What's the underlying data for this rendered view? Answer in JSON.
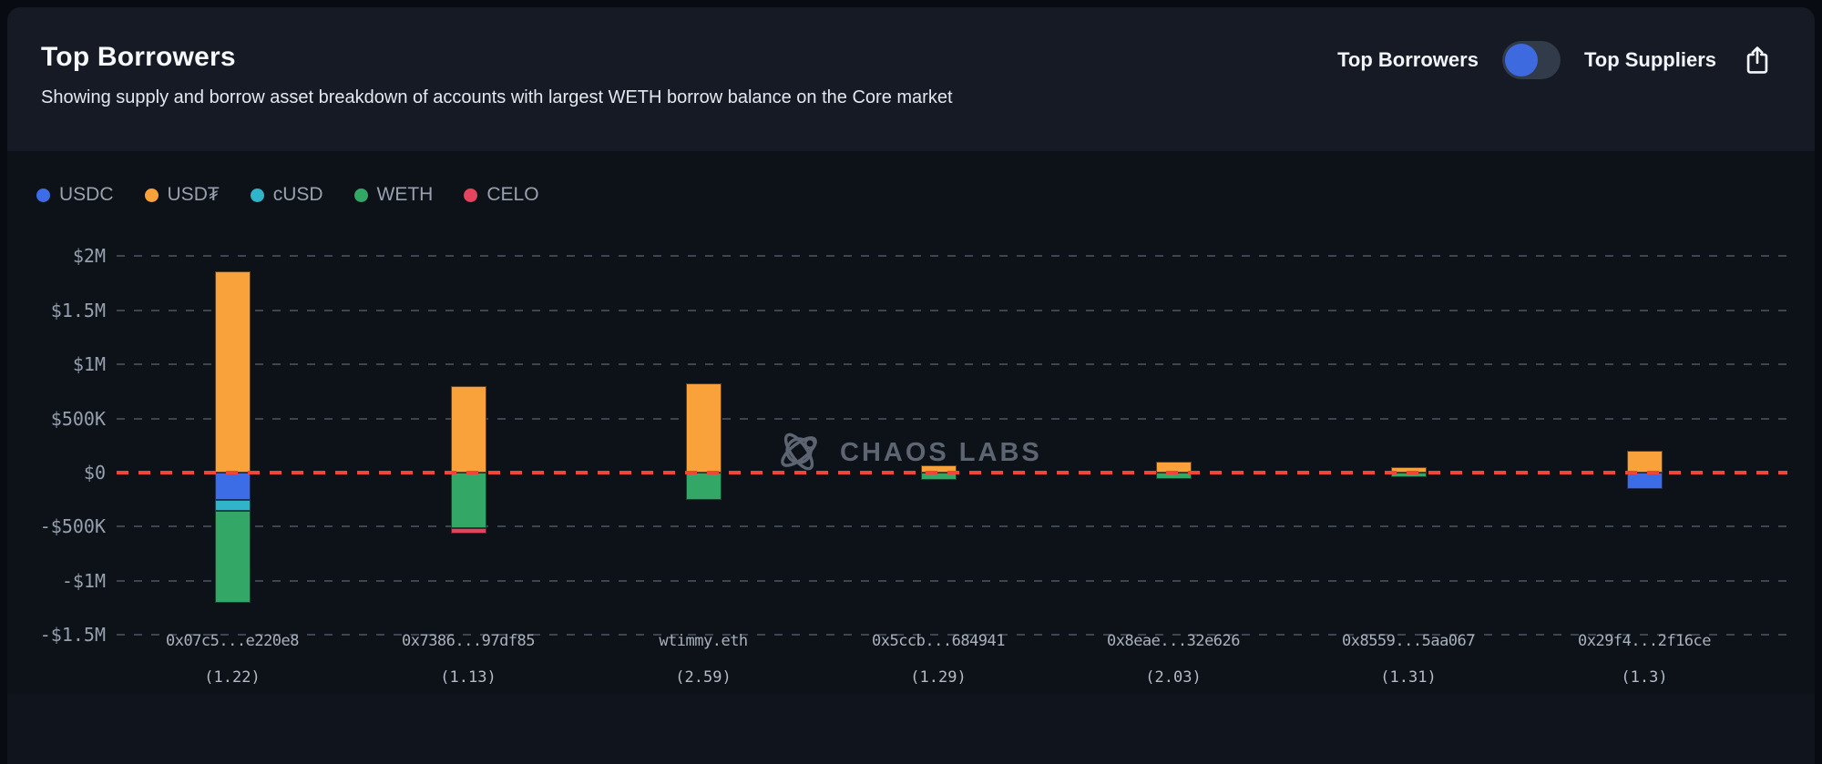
{
  "header": {
    "title": "Top Borrowers",
    "subtitle": "Showing supply and borrow asset breakdown of accounts with largest WETH borrow balance on the Core market",
    "view_toggle": {
      "left_label": "Top Borrowers",
      "right_label": "Top Suppliers",
      "selected": "Top Borrowers",
      "knob_color": "#3e6ae0"
    }
  },
  "legend": [
    {
      "label": "USDC",
      "color": "#3c6de6"
    },
    {
      "label": "USD₮",
      "color": "#f9a23c"
    },
    {
      "label": "cUSD",
      "color": "#2fb4c9"
    },
    {
      "label": "WETH",
      "color": "#33a866"
    },
    {
      "label": "CELO",
      "color": "#e5445f"
    }
  ],
  "watermark": {
    "text": "CHAOS LABS"
  },
  "chart_data": {
    "type": "bar",
    "stacked": true,
    "title": "Top Borrowers",
    "legend_entries": [
      "USDC",
      "USD₮",
      "cUSD",
      "WETH",
      "CELO"
    ],
    "y_axis": {
      "unit": "USD",
      "ylim_k": [
        -1500,
        2000
      ],
      "gridline_style": "dashed",
      "zero_line_color": "#ef4639",
      "ticks": [
        {
          "label": "$2M",
          "value_k": 2000
        },
        {
          "label": "$1.5M",
          "value_k": 1500
        },
        {
          "label": "$1M",
          "value_k": 1000
        },
        {
          "label": "$500K",
          "value_k": 500
        },
        {
          "label": "$0",
          "value_k": 0
        },
        {
          "label": "-$500K",
          "value_k": -500
        },
        {
          "label": "-$1M",
          "value_k": -1000
        },
        {
          "label": "-$1.5M",
          "value_k": -1500
        }
      ]
    },
    "asset_colors": {
      "USDC": "#3c6de6",
      "USD₮": "#f9a23c",
      "cUSD": "#2fb4c9",
      "WETH": "#33a866",
      "CELO": "#e5445f"
    },
    "accounts": [
      {
        "address": "0x07c5...e220e8",
        "health_factor": "(1.22)",
        "supply_usd_k": [
          {
            "asset": "USD₮",
            "value": 1860
          }
        ],
        "borrow_usd_k": [
          {
            "asset": "USDC",
            "value": 255
          },
          {
            "asset": "cUSD",
            "value": 100
          },
          {
            "asset": "WETH",
            "value": 845
          }
        ]
      },
      {
        "address": "0x7386...97df85",
        "health_factor": "(1.13)",
        "supply_usd_k": [
          {
            "asset": "USD₮",
            "value": 800
          }
        ],
        "borrow_usd_k": [
          {
            "asset": "WETH",
            "value": 515
          },
          {
            "asset": "CELO",
            "value": 50
          }
        ]
      },
      {
        "address": "wtimmy.eth",
        "health_factor": "(2.59)",
        "supply_usd_k": [
          {
            "asset": "USD₮",
            "value": 825
          }
        ],
        "borrow_usd_k": [
          {
            "asset": "WETH",
            "value": 255
          }
        ]
      },
      {
        "address": "0x5ccb...684941",
        "health_factor": "(1.29)",
        "supply_usd_k": [
          {
            "asset": "USD₮",
            "value": 70
          }
        ],
        "borrow_usd_k": [
          {
            "asset": "WETH",
            "value": 70
          }
        ]
      },
      {
        "address": "0x8eae...32e626",
        "health_factor": "(2.03)",
        "supply_usd_k": [
          {
            "asset": "USD₮",
            "value": 100
          }
        ],
        "borrow_usd_k": [
          {
            "asset": "WETH",
            "value": 55
          }
        ]
      },
      {
        "address": "0x8559...5aa067",
        "health_factor": "(1.31)",
        "supply_usd_k": [
          {
            "asset": "USD₮",
            "value": 50
          }
        ],
        "borrow_usd_k": [
          {
            "asset": "WETH",
            "value": 40
          }
        ]
      },
      {
        "address": "0x29f4...2f16ce",
        "health_factor": "(1.3)",
        "supply_usd_k": [
          {
            "asset": "USD₮",
            "value": 200
          }
        ],
        "borrow_usd_k": [
          {
            "asset": "USDC",
            "value": 150
          }
        ]
      }
    ]
  }
}
